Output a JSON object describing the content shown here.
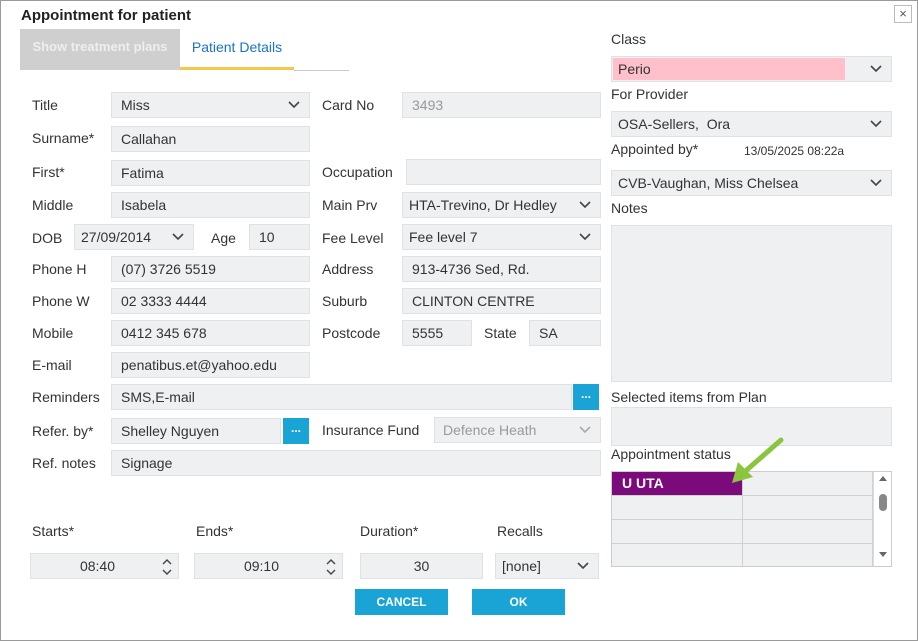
{
  "window": {
    "title": "Appointment for patient",
    "close": "×"
  },
  "tabs": [
    {
      "label": "Show treatment plans"
    },
    {
      "label": "Patient Details"
    }
  ],
  "patient": {
    "title_label": "Title",
    "title_value": "Miss",
    "card_label": "Card No",
    "card_value": "3493",
    "surname_label": "Surname*",
    "surname_value": "Callahan",
    "first_label": "First*",
    "first_value": "Fatima",
    "occupation_label": "Occupation",
    "occupation_value": "",
    "middle_label": "Middle",
    "middle_value": "Isabela",
    "mainprv_label": "Main Prv",
    "mainprv_value": "HTA-Trevino, Dr Hedley",
    "dob_label": "DOB",
    "dob_value": "27/09/2014",
    "age_label": "Age",
    "age_value": "10",
    "feelevel_label": "Fee Level",
    "feelevel_value": "Fee level 7",
    "phoneh_label": "Phone H",
    "phoneh_value": "(07) 3726 5519",
    "address_label": "Address",
    "address_value": "913-4736 Sed, Rd.",
    "phonew_label": "Phone W",
    "phonew_value": "02 3333 4444",
    "suburb_label": "Suburb",
    "suburb_value": "CLINTON CENTRE",
    "mobile_label": "Mobile",
    "mobile_value": "0412 345 678",
    "postcode_label": "Postcode",
    "postcode_value": "5555",
    "state_label": "State",
    "state_value": "SA",
    "email_label": "E-mail",
    "email_value": "penatibus.et@yahoo.edu",
    "reminders_label": "Reminders",
    "reminders_value": "SMS,E-mail",
    "referby_label": "Refer. by*",
    "referby_value": "Shelley Nguyen",
    "insurance_label": "Insurance Fund",
    "insurance_value": "Defence Heath",
    "refnotes_label": "Ref. notes",
    "refnotes_value": "Signage",
    "more_label": "..."
  },
  "time": {
    "starts_label": "Starts*",
    "starts_value": "08:40",
    "ends_label": "Ends*",
    "ends_value": "09:10",
    "duration_label": "Duration*",
    "duration_value": "30",
    "recalls_label": "Recalls",
    "recalls_value": "[none]"
  },
  "buttons": {
    "cancel": "CANCEL",
    "ok": "OK"
  },
  "right": {
    "class_label": "Class",
    "class_value": "Perio",
    "class_color": "#ffc0cb",
    "provider_label": "For Provider",
    "provider_value": "OSA-Sellers,  Ora",
    "appointed_label": "Appointed by*",
    "appointed_date": "13/05/2025 08:22a",
    "appointed_value": "CVB-Vaughan, Miss Chelsea",
    "notes_label": "Notes",
    "notes_value": "",
    "selected_label": "Selected items from Plan",
    "status_label": "Appointment status",
    "status_value": "U UTA",
    "status_color": "#7b0a7b"
  },
  "icons": {
    "dropdown": "chevron-down-icon",
    "spinner": "up-down-spinner-icon",
    "arrow": "green-arrow-pointer"
  }
}
